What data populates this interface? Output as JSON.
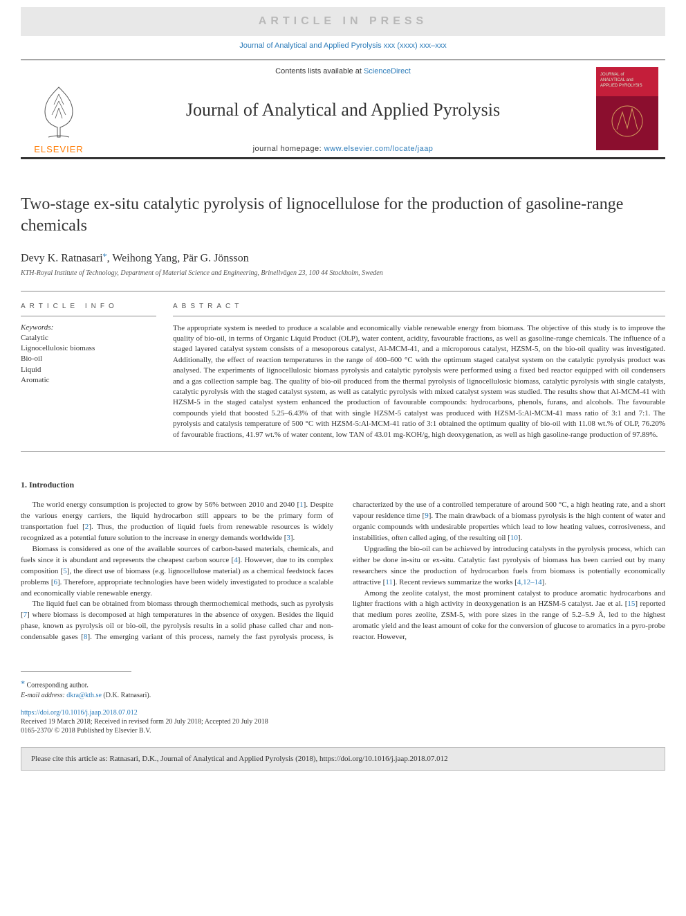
{
  "colors": {
    "link": "#2b7bb9",
    "banner_bg": "#e8e8e8",
    "banner_text": "#b8b8b8",
    "elsevier_orange": "#ff7a00",
    "cover_bg": "#8b0e2e",
    "cover_band": "#c41e3a",
    "rule": "#333333"
  },
  "banner": {
    "label": "ARTICLE IN PRESS"
  },
  "ref_line": "Journal of Analytical and Applied Pyrolysis xxx (xxxx) xxx–xxx",
  "header": {
    "contents_prefix": "Contents lists available at ",
    "contents_link": "ScienceDirect",
    "journal": "Journal of Analytical and Applied Pyrolysis",
    "homepage_prefix": "journal homepage: ",
    "homepage_url": "www.elsevier.com/locate/jaap",
    "publisher": "ELSEVIER",
    "cover_title_line1": "JOURNAL of",
    "cover_title_line2": "ANALYTICAL and",
    "cover_title_line3": "APPLIED PYROLYSIS"
  },
  "article": {
    "title": "Two-stage ex-situ catalytic pyrolysis of lignocellulose for the production of gasoline-range chemicals",
    "authors_html": "Devy K. Ratnasari*, Weihong Yang, Pär G. Jönsson",
    "author1": "Devy K. Ratnasari",
    "author2": "Weihong Yang",
    "author3": "Pär G. Jönsson",
    "affiliation": "KTH-Royal Institute of Technology, Department of Material Science and Engineering, Brinellvägen 23, 100 44 Stockholm, Sweden"
  },
  "info": {
    "label": "ARTICLE INFO",
    "keywords_label": "Keywords:",
    "keywords": [
      "Catalytic",
      "Lignocellulosic biomass",
      "Bio-oil",
      "Liquid",
      "Aromatic"
    ]
  },
  "abstract": {
    "label": "ABSTRACT",
    "text": "The appropriate system is needed to produce a scalable and economically viable renewable energy from biomass. The objective of this study is to improve the quality of bio-oil, in terms of Organic Liquid Product (OLP), water content, acidity, favourable fractions, as well as gasoline-range chemicals. The influence of a staged layered catalyst system consists of a mesoporous catalyst, Al-MCM-41, and a microporous catalyst, HZSM-5, on the bio-oil quality was investigated. Additionally, the effect of reaction temperatures in the range of 400–600 °C with the optimum staged catalyst system on the catalytic pyrolysis product was analysed. The experiments of lignocellulosic biomass pyrolysis and catalytic pyrolysis were performed using a fixed bed reactor equipped with oil condensers and a gas collection sample bag. The quality of bio-oil produced from the thermal pyrolysis of lignocellulosic biomass, catalytic pyrolysis with single catalysts, catalytic pyrolysis with the staged catalyst system, as well as catalytic pyrolysis with mixed catalyst system was studied. The results show that Al-MCM-41 with HZSM-5 in the staged catalyst system enhanced the production of favourable compounds: hydrocarbons, phenols, furans, and alcohols. The favourable compounds yield that boosted 5.25–6.43% of that with single HZSM-5 catalyst was produced with HZSM-5:Al-MCM-41 mass ratio of 3:1 and 7:1. The pyrolysis and catalysis temperature of 500 °C with HZSM-5:Al-MCM-41 ratio of 3:1 obtained the optimum quality of bio-oil with 11.08 wt.% of OLP, 76.20% of favourable fractions, 41.97 wt.% of water content, low TAN of 43.01 mg-KOH/g, high deoxygenation, as well as high gasoline-range production of 97.89%."
  },
  "section1": {
    "heading": "1. Introduction",
    "p1": "The world energy consumption is projected to grow by 56% between 2010 and 2040 [1]. Despite the various energy carriers, the liquid hydrocarbon still appears to be the primary form of transportation fuel [2]. Thus, the production of liquid fuels from renewable resources is widely recognized as a potential future solution to the increase in energy demands worldwide [3].",
    "p2": "Biomass is considered as one of the available sources of carbon-based materials, chemicals, and fuels since it is abundant and represents the cheapest carbon source [4]. However, due to its complex composition [5], the direct use of biomass (e.g. lignocellulose material) as a chemical feedstock faces problems [6]. Therefore, appropriate technologies have been widely investigated to produce a scalable and economically viable renewable energy.",
    "p3": "The liquid fuel can be obtained from biomass through thermochemical methods, such as pyrolysis [7] where biomass is decomposed at high temperatures in the absence of oxygen. Besides the liquid phase, known as pyrolysis oil or bio-oil, the pyrolysis results in a solid phase called char and non-condensable gases [8]. The emerging variant of this process, namely the fast pyrolysis process, is characterized by the use of a controlled temperature of around 500 °C, a high heating rate, and a short vapour residence time [9]. The main drawback of a biomass pyrolysis is the high content of water and organic compounds with undesirable properties which lead to low heating values, corrosiveness, and instabilities, often called aging, of the resulting oil [10].",
    "p4": "Upgrading the bio-oil can be achieved by introducing catalysts in the pyrolysis process, which can either be done in-situ or ex-situ. Catalytic fast pyrolysis of biomass has been carried out by many researchers since the production of hydrocarbon fuels from biomass is potentially economically attractive [11]. Recent reviews summarize the works [4,12–14].",
    "p5": "Among the zeolite catalyst, the most prominent catalyst to produce aromatic hydrocarbons and lighter fractions with a high activity in deoxygenation is an HZSM-5 catalyst. Jae et al. [15] reported that medium pores zeolite, ZSM-5, with pore sizes in the range of 5.2–5.9 Å, led to the highest aromatic yield and the least amount of coke for the conversion of glucose to aromatics in a pyro-probe reactor. However,"
  },
  "footnotes": {
    "corresp": "Corresponding author.",
    "email_label": "E-mail address:",
    "email": "dkra@kth.se",
    "email_author": "(D.K. Ratnasari)."
  },
  "meta": {
    "doi_url": "https://doi.org/10.1016/j.jaap.2018.07.012",
    "dates": "Received 19 March 2018; Received in revised form 20 July 2018; Accepted 20 July 2018",
    "issn_line": "0165-2370/ © 2018 Published by Elsevier B.V."
  },
  "cite": {
    "text": "Please cite this article as: Ratnasari, D.K., Journal of Analytical and Applied Pyrolysis (2018), https://doi.org/10.1016/j.jaap.2018.07.012"
  }
}
